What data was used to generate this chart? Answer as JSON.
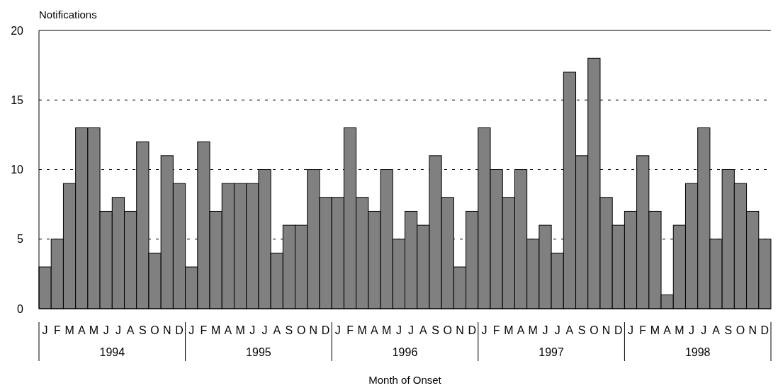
{
  "chart_data": {
    "type": "bar",
    "ylabel": "Notifications",
    "xlabel": "Month of Onset",
    "categories": [
      "J",
      "F",
      "M",
      "A",
      "M",
      "J",
      "J",
      "A",
      "S",
      "O",
      "N",
      "D",
      "J",
      "F",
      "M",
      "A",
      "M",
      "J",
      "J",
      "A",
      "S",
      "O",
      "N",
      "D",
      "J",
      "F",
      "M",
      "A",
      "M",
      "J",
      "J",
      "A",
      "S",
      "O",
      "N",
      "D",
      "J",
      "F",
      "M",
      "A",
      "M",
      "J",
      "J",
      "A",
      "S",
      "O",
      "N",
      "D",
      "J",
      "F",
      "M",
      "A",
      "M",
      "J",
      "J",
      "A",
      "S",
      "O",
      "N",
      "D"
    ],
    "values": [
      3,
      5,
      9,
      13,
      13,
      7,
      8,
      7,
      12,
      4,
      11,
      9,
      3,
      12,
      7,
      9,
      9,
      9,
      10,
      4,
      6,
      6,
      10,
      8,
      8,
      13,
      8,
      7,
      10,
      5,
      7,
      6,
      11,
      8,
      3,
      7,
      13,
      10,
      8,
      10,
      5,
      6,
      4,
      17,
      11,
      18,
      8,
      6,
      7,
      11,
      7,
      1,
      6,
      9,
      13,
      5,
      10,
      9,
      7,
      5
    ],
    "color": "#808080",
    "ylim": [
      0,
      20
    ],
    "yticks": [
      0,
      5,
      10,
      15,
      20
    ],
    "grid": "y",
    "annotations": [
      "1994",
      "1995",
      "1996",
      "1997",
      "1998"
    ]
  }
}
